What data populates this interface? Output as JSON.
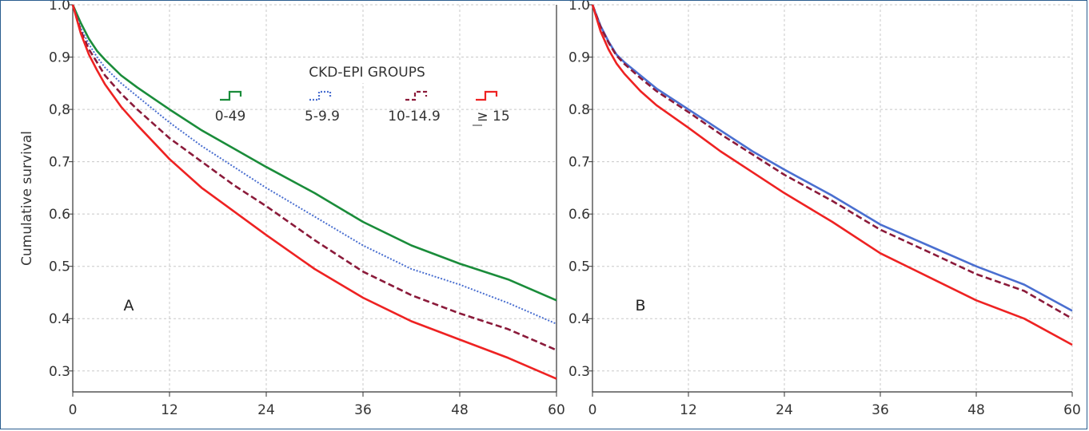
{
  "chart_data": [
    {
      "type": "line",
      "panel_label": "A",
      "ylabel": "Cumulative survival",
      "xlabel": "",
      "xlim": [
        0,
        60
      ],
      "ylim": [
        0.26,
        1.0
      ],
      "x_ticks": [
        "0",
        "12",
        "24",
        "36",
        "48",
        "60"
      ],
      "y_ticks": [
        "1.0",
        "0.9",
        "0,8",
        "0.7",
        "0.6",
        "0.5",
        "0.4",
        "0.3"
      ],
      "grid": true,
      "legend": {
        "title": "CKD-EPI GROUPS",
        "placement": "top-right",
        "entries": [
          "0-49",
          "5-9.9",
          "10-14.9",
          "≥ 15"
        ]
      },
      "x": [
        0,
        1,
        2,
        3,
        4,
        6,
        8,
        12,
        16,
        20,
        24,
        30,
        36,
        42,
        48,
        54,
        60
      ],
      "series": [
        {
          "name": "0-49",
          "color": "#1a8c3a",
          "dash": "solid",
          "values": [
            1.0,
            0.965,
            0.935,
            0.912,
            0.895,
            0.865,
            0.842,
            0.8,
            0.76,
            0.725,
            0.69,
            0.64,
            0.585,
            0.54,
            0.505,
            0.475,
            0.435
          ]
        },
        {
          "name": "5-9.9",
          "color": "#4a6fd0",
          "dash": "dotted",
          "values": [
            1.0,
            0.955,
            0.925,
            0.9,
            0.88,
            0.85,
            0.825,
            0.775,
            0.73,
            0.69,
            0.65,
            0.595,
            0.54,
            0.495,
            0.465,
            0.43,
            0.39
          ]
        },
        {
          "name": "10-14.9",
          "color": "#8b1a3a",
          "dash": "dashed",
          "values": [
            1.0,
            0.95,
            0.915,
            0.89,
            0.865,
            0.83,
            0.8,
            0.745,
            0.7,
            0.655,
            0.615,
            0.55,
            0.49,
            0.445,
            0.41,
            0.38,
            0.34
          ]
        },
        {
          "name": "≥ 15",
          "color": "#ee2222",
          "dash": "solid",
          "values": [
            1.0,
            0.945,
            0.905,
            0.875,
            0.848,
            0.805,
            0.77,
            0.705,
            0.65,
            0.605,
            0.56,
            0.495,
            0.44,
            0.395,
            0.36,
            0.325,
            0.285
          ]
        }
      ]
    },
    {
      "type": "line",
      "panel_label": "B",
      "ylabel": "",
      "xlabel": "",
      "xlim": [
        0,
        60
      ],
      "ylim": [
        0.26,
        1.0
      ],
      "x_ticks": [
        "0",
        "12",
        "24",
        "36",
        "48",
        "60"
      ],
      "y_ticks": [
        "1.0",
        "0.9",
        "0.8",
        "0.7",
        "0.6",
        "0.5",
        "0.4",
        "0.3"
      ],
      "grid": true,
      "x": [
        0,
        1,
        2,
        3,
        4,
        6,
        8,
        12,
        16,
        20,
        24,
        30,
        36,
        42,
        48,
        54,
        60
      ],
      "series": [
        {
          "name": "",
          "color": "#4a6fd0",
          "dash": "solid",
          "values": [
            1.0,
            0.96,
            0.93,
            0.905,
            0.89,
            0.865,
            0.84,
            0.8,
            0.76,
            0.72,
            0.685,
            0.635,
            0.58,
            0.54,
            0.5,
            0.465,
            0.415
          ]
        },
        {
          "name": "",
          "color": "#8b1a3a",
          "dash": "dashed",
          "values": [
            1.0,
            0.958,
            0.928,
            0.903,
            0.887,
            0.86,
            0.835,
            0.795,
            0.753,
            0.714,
            0.675,
            0.625,
            0.57,
            0.528,
            0.485,
            0.453,
            0.4
          ]
        },
        {
          "name": "",
          "color": "#ee2222",
          "dash": "solid",
          "values": [
            1.0,
            0.95,
            0.915,
            0.888,
            0.868,
            0.835,
            0.808,
            0.765,
            0.72,
            0.68,
            0.64,
            0.585,
            0.525,
            0.48,
            0.435,
            0.4,
            0.35
          ]
        }
      ]
    }
  ]
}
